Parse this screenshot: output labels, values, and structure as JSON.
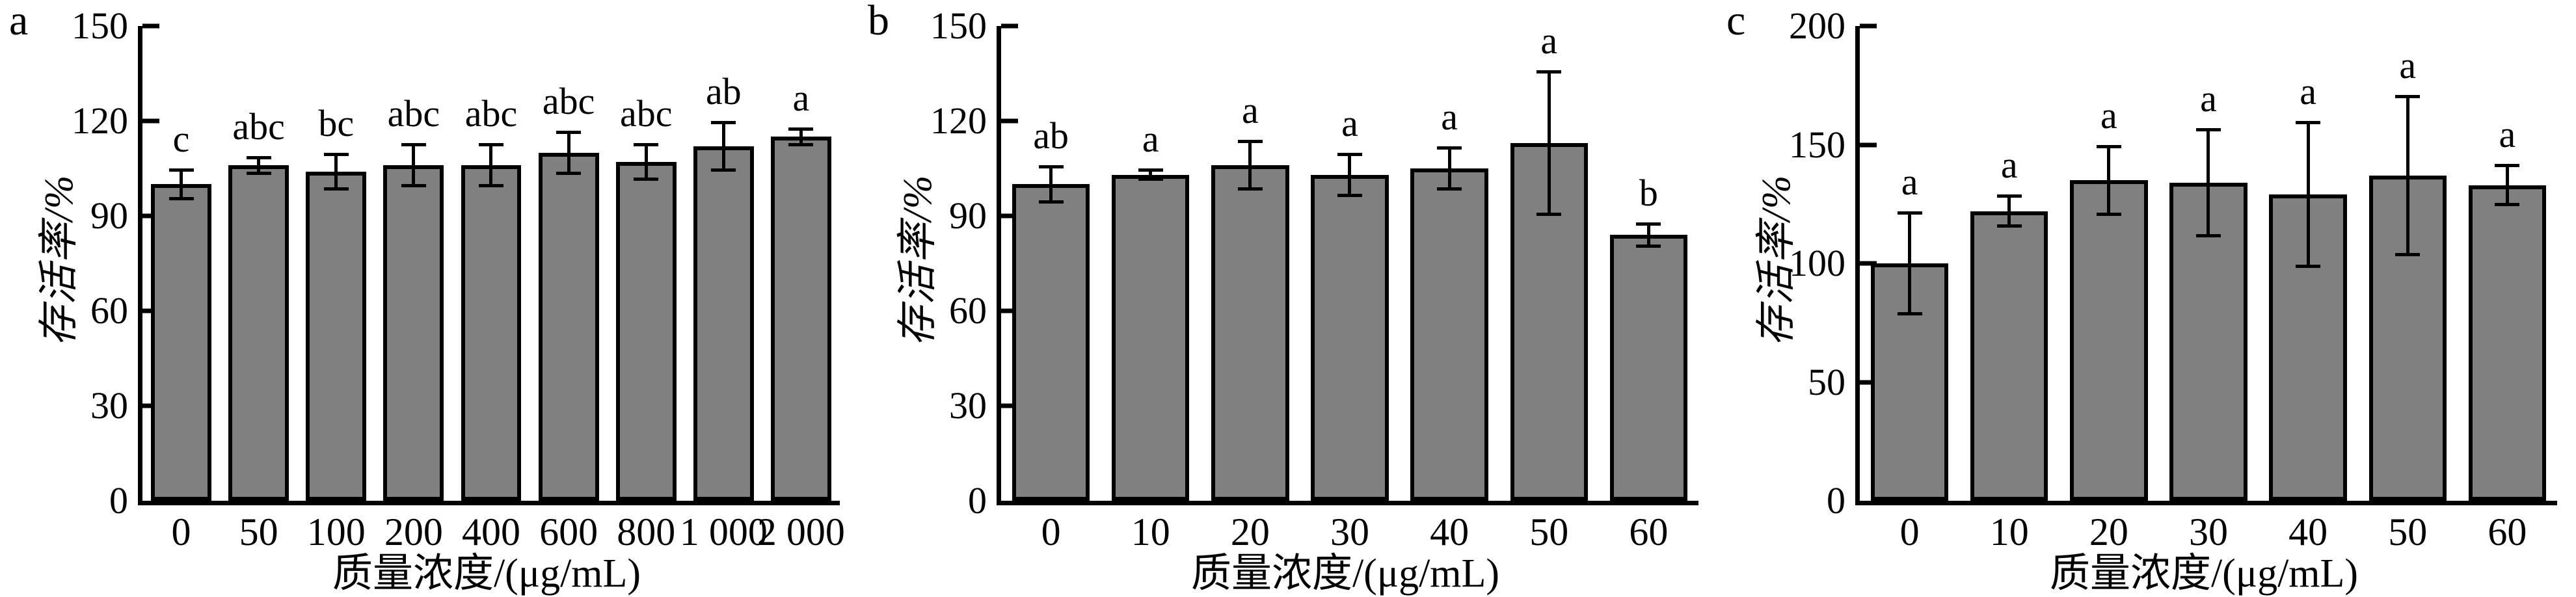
{
  "figure": {
    "background": "#ffffff",
    "bar_fill": "#808080",
    "axis_color": "#000000"
  },
  "chart_data": [
    {
      "type": "bar",
      "panel_label": "a",
      "ylabel": "存活率/%",
      "xlabel": "质量浓度/(μg/mL)",
      "categories": [
        "0",
        "50",
        "100",
        "200",
        "400",
        "600",
        "800",
        "1 000",
        "2 000"
      ],
      "values": [
        100,
        106,
        104,
        106,
        106,
        110,
        107,
        112,
        115
      ],
      "errors": [
        5,
        3,
        6,
        7,
        7,
        7,
        6,
        8,
        3
      ],
      "sig_letters": [
        "c",
        "abc",
        "bc",
        "abc",
        "abc",
        "abc",
        "abc",
        "ab",
        "a"
      ],
      "ylim": [
        0,
        150
      ],
      "yticks": [
        0,
        30,
        60,
        90,
        120,
        150
      ],
      "grid": false,
      "legend": null
    },
    {
      "type": "bar",
      "panel_label": "b",
      "ylabel": "存活率/%",
      "xlabel": "质量浓度/(μg/mL)",
      "categories": [
        "0",
        "10",
        "20",
        "30",
        "40",
        "50",
        "60"
      ],
      "values": [
        100,
        103,
        106,
        103,
        105,
        113,
        84
      ],
      "errors": [
        6,
        2,
        8,
        7,
        7,
        23,
        4
      ],
      "sig_letters": [
        "ab",
        "a",
        "a",
        "a",
        "a",
        "a",
        "b"
      ],
      "ylim": [
        0,
        150
      ],
      "yticks": [
        0,
        30,
        60,
        90,
        120,
        150
      ],
      "grid": false,
      "legend": null
    },
    {
      "type": "bar",
      "panel_label": "c",
      "ylabel": "存活率/%",
      "xlabel": "质量浓度/(μg/mL)",
      "categories": [
        "0",
        "10",
        "20",
        "30",
        "40",
        "50",
        "60"
      ],
      "values": [
        100,
        122,
        135,
        134,
        129,
        137,
        133
      ],
      "errors": [
        22,
        7,
        15,
        23,
        31,
        34,
        9
      ],
      "sig_letters": [
        "a",
        "a",
        "a",
        "a",
        "a",
        "a",
        "a"
      ],
      "ylim": [
        0,
        200
      ],
      "yticks": [
        0,
        50,
        100,
        150,
        200
      ],
      "grid": false,
      "legend": null
    }
  ]
}
